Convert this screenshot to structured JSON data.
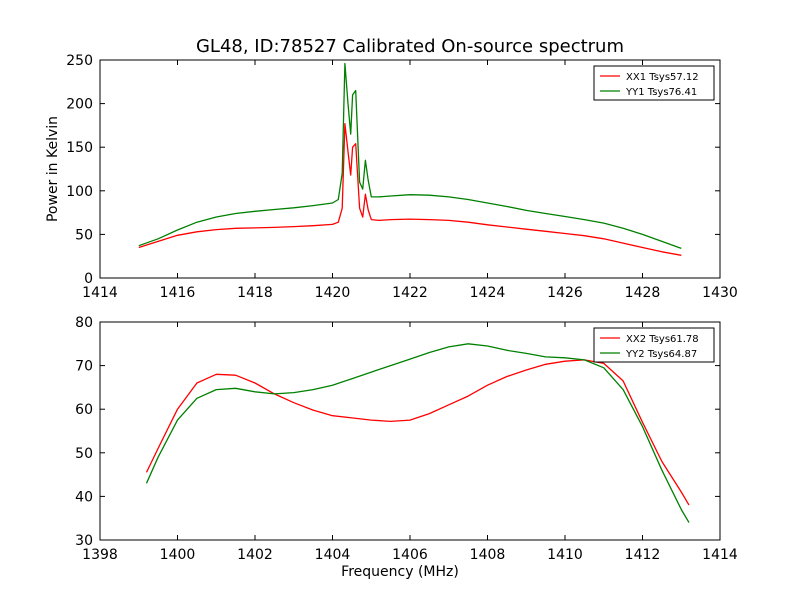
{
  "figure": {
    "title": "GL48, ID:78527 Calibrated On-source spectrum"
  },
  "chart_data": [
    {
      "type": "line",
      "title": "GL48, ID:78527 Calibrated On-source spectrum",
      "xlabel": "",
      "ylabel": "Power in Kelvin",
      "xlim": [
        1414,
        1430
      ],
      "ylim": [
        0,
        250
      ],
      "xticks": [
        1414,
        1416,
        1418,
        1420,
        1422,
        1424,
        1426,
        1428,
        1430
      ],
      "yticks": [
        0,
        50,
        100,
        150,
        200,
        250
      ],
      "grid": false,
      "legend": "top-right",
      "series": [
        {
          "name": "XX1 Tsys57.12",
          "color": "#ff0000",
          "x": [
            1415.0,
            1415.5,
            1416.0,
            1416.5,
            1417.0,
            1417.5,
            1418.0,
            1418.5,
            1419.0,
            1419.5,
            1420.0,
            1420.15,
            1420.25,
            1420.32,
            1420.4,
            1420.47,
            1420.52,
            1420.6,
            1420.7,
            1420.78,
            1420.85,
            1420.92,
            1421.0,
            1421.2,
            1421.5,
            1422.0,
            1422.5,
            1423.0,
            1423.5,
            1424.0,
            1424.5,
            1425.0,
            1425.5,
            1426.0,
            1426.5,
            1427.0,
            1427.5,
            1428.0,
            1428.5,
            1429.0
          ],
          "values": [
            35,
            42,
            49,
            53,
            55.5,
            57,
            57.5,
            58,
            59,
            60,
            61.5,
            64,
            80,
            177,
            145,
            118,
            150,
            154,
            80,
            70,
            96,
            78,
            67,
            66,
            67,
            67.5,
            67,
            66,
            64,
            61,
            58.5,
            56,
            53.5,
            51,
            48.5,
            45,
            40,
            35,
            30,
            26
          ]
        },
        {
          "name": "YY1 Tsys76.41",
          "color": "#008000",
          "x": [
            1415.0,
            1415.5,
            1416.0,
            1416.5,
            1417.0,
            1417.5,
            1418.0,
            1418.5,
            1419.0,
            1419.5,
            1420.0,
            1420.15,
            1420.25,
            1420.32,
            1420.4,
            1420.47,
            1420.52,
            1420.6,
            1420.7,
            1420.78,
            1420.85,
            1420.92,
            1421.0,
            1421.2,
            1421.5,
            1422.0,
            1422.5,
            1423.0,
            1423.5,
            1424.0,
            1424.5,
            1425.0,
            1425.5,
            1426.0,
            1426.5,
            1427.0,
            1427.5,
            1428.0,
            1428.5,
            1429.0
          ],
          "values": [
            37,
            45,
            55,
            64,
            70,
            74,
            76.5,
            78.5,
            80.5,
            83,
            86,
            90,
            120,
            246,
            200,
            165,
            210,
            215,
            110,
            102,
            135,
            112,
            93,
            93,
            94,
            95.5,
            95,
            93,
            90,
            86,
            82,
            77.5,
            74,
            70.5,
            67,
            63,
            57,
            50,
            42,
            34
          ]
        }
      ]
    },
    {
      "type": "line",
      "title": "",
      "xlabel": "Frequency (MHz)",
      "ylabel": "",
      "xlim": [
        1398,
        1414
      ],
      "ylim": [
        30,
        80
      ],
      "xticks": [
        1398,
        1400,
        1402,
        1404,
        1406,
        1408,
        1410,
        1412,
        1414
      ],
      "yticks": [
        30,
        40,
        50,
        60,
        70,
        80
      ],
      "grid": false,
      "legend": "top-right",
      "series": [
        {
          "name": "XX2 Tsys61.78",
          "color": "#ff0000",
          "x": [
            1399.2,
            1399.5,
            1400.0,
            1400.5,
            1401.0,
            1401.5,
            1402.0,
            1402.5,
            1403.0,
            1403.5,
            1404.0,
            1404.5,
            1405.0,
            1405.5,
            1406.0,
            1406.5,
            1407.0,
            1407.5,
            1408.0,
            1408.5,
            1409.0,
            1409.5,
            1410.0,
            1410.5,
            1411.0,
            1411.5,
            1412.0,
            1412.5,
            1413.0,
            1413.2
          ],
          "values": [
            45.5,
            51,
            60,
            66,
            68,
            67.8,
            66,
            63.5,
            61.5,
            59.8,
            58.5,
            58,
            57.5,
            57.2,
            57.5,
            59,
            61,
            63,
            65.5,
            67.5,
            69,
            70.3,
            71,
            71.3,
            70.5,
            66.5,
            57,
            48,
            41,
            38
          ]
        },
        {
          "name": "YY2 Tsys64.87",
          "color": "#008000",
          "x": [
            1399.2,
            1399.5,
            1400.0,
            1400.5,
            1401.0,
            1401.5,
            1402.0,
            1402.5,
            1403.0,
            1403.5,
            1404.0,
            1404.5,
            1405.0,
            1405.5,
            1406.0,
            1406.5,
            1407.0,
            1407.5,
            1408.0,
            1408.5,
            1409.0,
            1409.5,
            1410.0,
            1410.5,
            1411.0,
            1411.5,
            1412.0,
            1412.5,
            1413.0,
            1413.2
          ],
          "values": [
            43,
            49,
            57.5,
            62.5,
            64.5,
            64.8,
            64,
            63.5,
            63.8,
            64.5,
            65.5,
            67,
            68.5,
            70,
            71.5,
            73,
            74.3,
            75,
            74.5,
            73.5,
            72.8,
            72,
            71.8,
            71.3,
            69.5,
            64.5,
            56,
            46,
            37,
            34
          ]
        }
      ]
    }
  ]
}
